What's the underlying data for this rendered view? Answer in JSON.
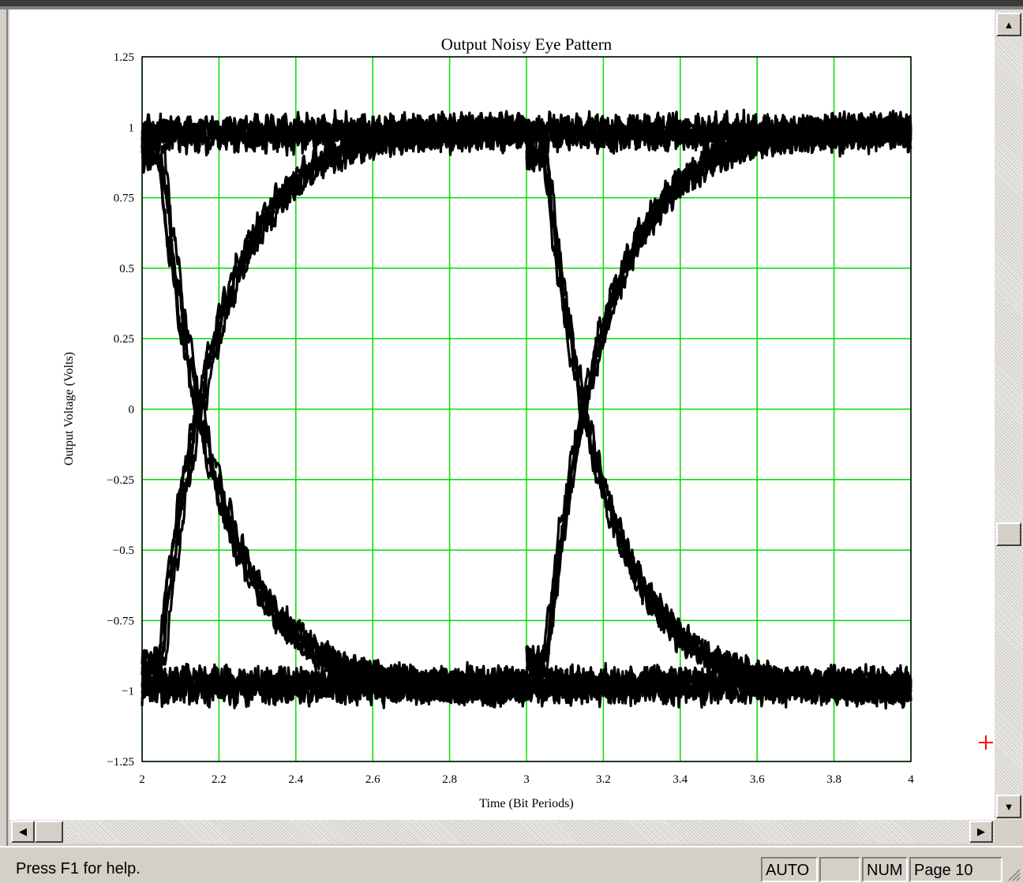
{
  "status": {
    "help_text": "Press F1 for help.",
    "panels": [
      "AUTO",
      "",
      "NUM",
      "Page 10"
    ]
  },
  "chart_data": {
    "type": "line",
    "title": "Output Noisy Eye Pattern",
    "xlabel": "Time (Bit Periods)",
    "ylabel": "Output Voltage (Volts)",
    "xlim": [
      2,
      4
    ],
    "ylim": [
      -1.25,
      1.25
    ],
    "xticks": [
      2,
      2.2,
      2.4,
      2.6,
      2.8,
      3,
      3.2,
      3.4,
      3.6,
      3.8,
      4
    ],
    "xtick_labels": [
      "2",
      "2.2",
      "2.4",
      "2.6",
      "2.8",
      "3",
      "3.2",
      "3.4",
      "3.6",
      "3.8",
      "4"
    ],
    "yticks": [
      1.25,
      1,
      0.75,
      0.5,
      0.25,
      0,
      -0.25,
      -0.5,
      -0.75,
      -1,
      -1.25
    ],
    "ytick_labels": [
      "1.25",
      "1",
      "0.75",
      "0.5",
      "0.25",
      "0",
      "−0.25",
      "−0.5",
      "−0.75",
      "−1",
      "−1.25"
    ],
    "grid": true,
    "grid_color": "#00dd00",
    "trace_color": "#000000",
    "eye_crossing_times": [
      2.28,
      3.28
    ],
    "crossing_voltage": 0,
    "high_level": 1,
    "low_level": -1,
    "noise_amplitude": 0.05,
    "series": [
      {
        "x": [
          2.0,
          2.05,
          2.1,
          2.15,
          2.2,
          2.25,
          2.28,
          2.3,
          2.35,
          2.4,
          2.5,
          2.6,
          2.7,
          2.8,
          2.9,
          3.0
        ],
        "y": [
          0.9,
          0.85,
          0.7,
          0.52,
          0.32,
          0.12,
          0.0,
          -0.08,
          -0.2,
          -0.32,
          -0.5,
          -0.65,
          -0.76,
          -0.84,
          -0.9,
          -0.93
        ]
      },
      {
        "x": [
          2.0,
          2.05,
          2.1,
          2.15,
          2.2,
          2.25,
          2.28,
          2.3,
          2.35,
          2.4,
          2.5,
          2.6,
          2.7,
          2.8,
          2.9,
          3.0
        ],
        "y": [
          -0.9,
          -0.85,
          -0.7,
          -0.52,
          -0.32,
          -0.12,
          0.0,
          0.08,
          0.2,
          0.32,
          0.5,
          0.65,
          0.76,
          0.84,
          0.9,
          0.93
        ]
      },
      {
        "x": [
          3.0,
          3.05,
          3.1,
          3.15,
          3.2,
          3.25,
          3.28,
          3.3,
          3.35,
          3.4,
          3.5,
          3.6,
          3.7,
          3.8,
          3.9,
          4.0
        ],
        "y": [
          0.9,
          0.85,
          0.7,
          0.52,
          0.32,
          0.12,
          0.0,
          -0.08,
          -0.2,
          -0.32,
          -0.5,
          -0.65,
          -0.76,
          -0.84,
          -0.9,
          -0.93
        ]
      },
      {
        "x": [
          3.0,
          3.05,
          3.1,
          3.15,
          3.2,
          3.25,
          3.28,
          3.3,
          3.35,
          3.4,
          3.5,
          3.6,
          3.7,
          3.8,
          3.9,
          4.0
        ],
        "y": [
          -0.9,
          -0.85,
          -0.7,
          -0.52,
          -0.32,
          -0.12,
          0.0,
          0.08,
          0.2,
          0.32,
          0.5,
          0.65,
          0.76,
          0.84,
          0.9,
          0.93
        ]
      },
      {
        "x": [
          2.0,
          2.5,
          3.0,
          3.5,
          4.0
        ],
        "y": [
          1.0,
          1.0,
          1.0,
          1.0,
          1.0
        ]
      },
      {
        "x": [
          2.0,
          2.5,
          3.0,
          3.5,
          4.0
        ],
        "y": [
          -1.0,
          -1.0,
          -1.0,
          -1.0,
          -1.0
        ]
      }
    ]
  }
}
